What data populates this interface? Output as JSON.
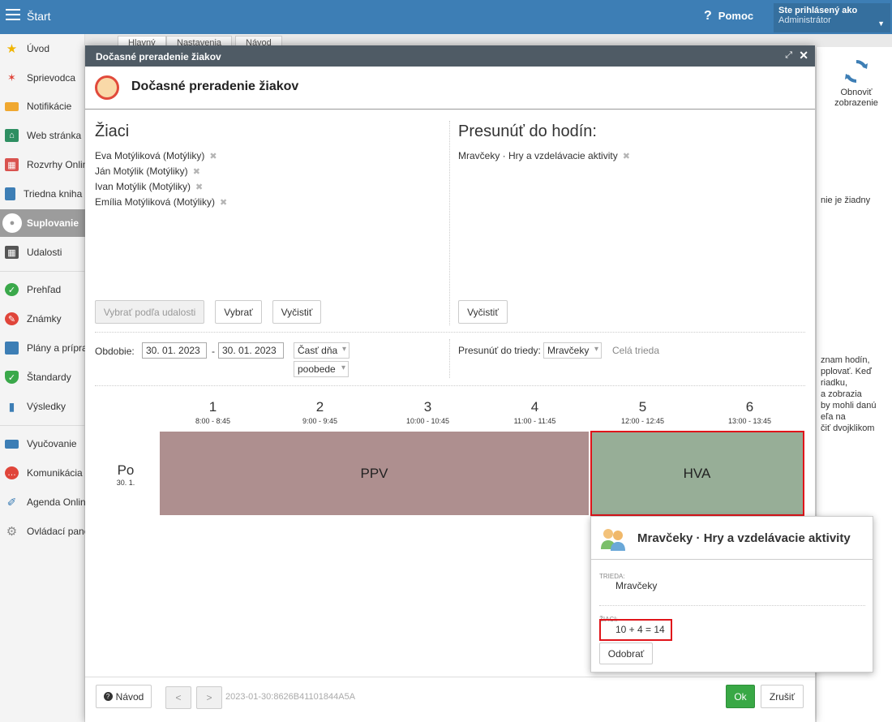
{
  "app": {
    "title": "Štart",
    "help_label": "Pomoc",
    "user_line1": "Ste prihlásený ako",
    "user_line2": "Administrátor"
  },
  "sidebar": {
    "items": [
      {
        "label": "Úvod",
        "icon": "star-icon"
      },
      {
        "label": "Sprievodca",
        "icon": "wand-icon"
      },
      {
        "label": "Notifikácie",
        "icon": "envelope-icon"
      },
      {
        "label": "Web stránka",
        "icon": "home-icon"
      },
      {
        "label": "Rozvrhy Online",
        "icon": "calendar-grid-icon"
      },
      {
        "label": "Triedna kniha",
        "icon": "book-icon"
      },
      {
        "label": "Suplovanie",
        "icon": "person-icon"
      },
      {
        "label": "Udalosti",
        "icon": "calendar-icon"
      },
      {
        "label": "Prehľad",
        "icon": "check-circle-icon"
      },
      {
        "label": "Známky",
        "icon": "grade-icon"
      },
      {
        "label": "Plány a prípravy",
        "icon": "briefcase-icon"
      },
      {
        "label": "Štandardy",
        "icon": "shield-check-icon"
      },
      {
        "label": "Výsledky",
        "icon": "bar-chart-icon"
      },
      {
        "label": "Vyučovanie",
        "icon": "open-book-icon"
      },
      {
        "label": "Komunikácia",
        "icon": "chat-icon"
      },
      {
        "label": "Agenda Online",
        "icon": "pen-icon"
      },
      {
        "label": "Ovládací panel",
        "icon": "gear-icon"
      }
    ]
  },
  "bg": {
    "tabs": [
      "Hlavný",
      "Nastavenia",
      "Návod"
    ],
    "refresh_line1": "Obnoviť",
    "refresh_line2": "zobrazenie",
    "info_top": "nie je žiadny",
    "info_lines": [
      "znam hodín,",
      "pplovať. Keď",
      "riadku,",
      "a zobrazia",
      "by mohli danú",
      "eľa na",
      "čiť dvojklikom"
    ]
  },
  "dialog": {
    "title": "Dočasné preradenie žiakov",
    "header": "Dočasné preradenie žiakov",
    "students_title": "Žiaci",
    "students": [
      "Eva Motýliková (Motýliky)",
      "Ján Motýlik (Motýliky)",
      "Ivan Motýlik (Motýliky)",
      "Emília Motýliková (Motýliky)"
    ],
    "move_title": "Presunúť do hodín:",
    "move_items": [
      "Mravčeky · Hry a vzdelávacie aktivity"
    ],
    "btn_select_by_event": "Vybrať podľa udalosti",
    "btn_select": "Vybrať",
    "btn_clear_left": "Vyčistiť",
    "btn_clear_right": "Vyčistiť",
    "period_label": "Obdobie:",
    "date_from": "30. 01. 2023",
    "date_sep": "-",
    "date_to": "30. 01. 2023",
    "day_part_select": "Časť dňa",
    "afternoon_select": "poobede",
    "move_class_label": "Presunúť do triedy:",
    "class_select": "Mravčeky",
    "whole_class_label": "Celá trieda",
    "periods": [
      {
        "num": "1",
        "time": "8:00 - 8:45"
      },
      {
        "num": "2",
        "time": "9:00 - 9:45"
      },
      {
        "num": "3",
        "time": "10:00 - 10:45"
      },
      {
        "num": "4",
        "time": "11:00 - 11:45"
      },
      {
        "num": "5",
        "time": "12:00 - 12:45"
      },
      {
        "num": "6",
        "time": "13:00 - 13:45"
      }
    ],
    "day": {
      "short": "Po",
      "date": "30. 1."
    },
    "blocks": [
      {
        "label": "PPV",
        "color": "#ae8f8f"
      },
      {
        "label": "HVA",
        "color": "#97ae97"
      }
    ],
    "footer": {
      "help_button": "Návod",
      "prev": "<",
      "next": ">",
      "id_text": "2023-01-30:8626B41101844A5A",
      "ok_button": "Ok",
      "cancel_button": "Zrušiť"
    }
  },
  "popup": {
    "title": "Mravčeky · Hry a vzdelávacie aktivity",
    "class_label": "TRIEDA:",
    "class_value": "Mravčeky",
    "students_label": "ŽIACI:",
    "students_value": "10 + 4 = 14",
    "remove_button": "Odobrať"
  },
  "colors": {
    "topbar": "#3d7eb5",
    "dialog_header": "#4f5b65",
    "highlight": "#e0141a",
    "ok_green": "#39a845"
  }
}
